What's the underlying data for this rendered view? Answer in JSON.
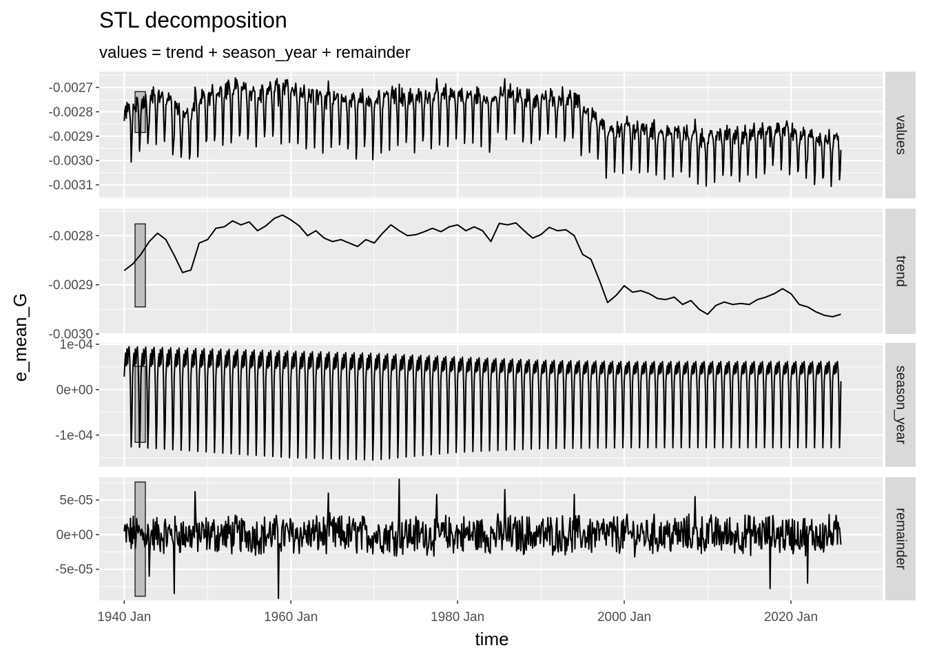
{
  "chart_data": {
    "type": "line",
    "title": "STL decomposition",
    "subtitle": "values = trend + season_year + remainder",
    "xlabel": "time",
    "ylabel": "e_mean_G",
    "x_range": [
      1937.0,
      2031.0
    ],
    "x_ticks": [
      {
        "value": 1940,
        "label": "1940 Jan"
      },
      {
        "value": 1960,
        "label": "1960 Jan"
      },
      {
        "value": 1980,
        "label": "1980 Jan"
      },
      {
        "value": 2000,
        "label": "2000 Jan"
      },
      {
        "value": 2020,
        "label": "2020 Jan"
      }
    ],
    "series_start": 1940.0,
    "series_end": 2026.0,
    "panels": [
      {
        "name": "values",
        "ylim": [
          -0.003155,
          -0.002635
        ],
        "ticks": [
          {
            "value": -0.0027,
            "label": "-0.0027"
          },
          {
            "value": -0.0028,
            "label": "-0.0028"
          },
          {
            "value": -0.0029,
            "label": "-0.0029"
          },
          {
            "value": -0.003,
            "label": "-0.0030"
          },
          {
            "value": -0.0031,
            "label": "-0.0031"
          }
        ],
        "scale_bar": [
          -0.002885,
          -0.002717
        ]
      },
      {
        "name": "trend",
        "ylim": [
          -0.003,
          -0.002745
        ],
        "ticks": [
          {
            "value": -0.0028,
            "label": "-0.0028"
          },
          {
            "value": -0.0029,
            "label": "-0.0029"
          },
          {
            "value": -0.003,
            "label": "-0.0030"
          }
        ],
        "scale_bar": [
          -0.002945,
          -0.002776
        ]
      },
      {
        "name": "season_year",
        "ylim": [
          -0.00017,
          0.000103
        ],
        "ticks": [
          {
            "value": 0.0001,
            "label": "1e-04"
          },
          {
            "value": 0.0,
            "label": "0e+00"
          },
          {
            "value": -0.0001,
            "label": "-1e-04"
          }
        ],
        "scale_bar": [
          -0.000116,
          5.16e-05
        ]
      },
      {
        "name": "remainder",
        "ylim": [
          -9.5e-05,
          8.3e-05
        ],
        "ticks": [
          {
            "value": 5e-05,
            "label": "5e-05"
          },
          {
            "value": 0.0,
            "label": "0e+00"
          },
          {
            "value": -5e-05,
            "label": "-5e-05"
          }
        ],
        "scale_bar": [
          -8.9e-05,
          7.6e-05
        ]
      }
    ],
    "trend_points": [
      [
        1940.0,
        -0.002871
      ],
      [
        1941.0,
        -0.002858
      ],
      [
        1942.0,
        -0.002838
      ],
      [
        1943.0,
        -0.002812
      ],
      [
        1944.0,
        -0.002795
      ],
      [
        1945.0,
        -0.002808
      ],
      [
        1946.0,
        -0.00284
      ],
      [
        1947.0,
        -0.002875
      ],
      [
        1948.0,
        -0.00287
      ],
      [
        1949.0,
        -0.002815
      ],
      [
        1950.0,
        -0.002808
      ],
      [
        1951.0,
        -0.002785
      ],
      [
        1952.0,
        -0.002782
      ],
      [
        1953.0,
        -0.00277
      ],
      [
        1954.0,
        -0.002778
      ],
      [
        1955.0,
        -0.002772
      ],
      [
        1956.0,
        -0.00279
      ],
      [
        1957.0,
        -0.00278
      ],
      [
        1958.0,
        -0.002765
      ],
      [
        1959.0,
        -0.002758
      ],
      [
        1960.0,
        -0.002768
      ],
      [
        1961.0,
        -0.00278
      ],
      [
        1962.0,
        -0.0028
      ],
      [
        1963.0,
        -0.00279
      ],
      [
        1964.0,
        -0.002805
      ],
      [
        1965.0,
        -0.002812
      ],
      [
        1966.0,
        -0.002808
      ],
      [
        1967.0,
        -0.002815
      ],
      [
        1968.0,
        -0.002822
      ],
      [
        1969.0,
        -0.002808
      ],
      [
        1970.0,
        -0.002815
      ],
      [
        1971.0,
        -0.002795
      ],
      [
        1972.0,
        -0.002778
      ],
      [
        1973.0,
        -0.00279
      ],
      [
        1974.0,
        -0.0028
      ],
      [
        1975.0,
        -0.002798
      ],
      [
        1976.0,
        -0.002792
      ],
      [
        1977.0,
        -0.002785
      ],
      [
        1978.0,
        -0.002792
      ],
      [
        1979.0,
        -0.002782
      ],
      [
        1980.0,
        -0.002778
      ],
      [
        1981.0,
        -0.00279
      ],
      [
        1982.0,
        -0.002782
      ],
      [
        1983.0,
        -0.00279
      ],
      [
        1984.0,
        -0.002812
      ],
      [
        1985.0,
        -0.002775
      ],
      [
        1986.0,
        -0.002778
      ],
      [
        1987.0,
        -0.002774
      ],
      [
        1988.0,
        -0.00279
      ],
      [
        1989.0,
        -0.002805
      ],
      [
        1990.0,
        -0.002798
      ],
      [
        1991.0,
        -0.002783
      ],
      [
        1992.0,
        -0.00279
      ],
      [
        1993.0,
        -0.002788
      ],
      [
        1994.0,
        -0.0028
      ],
      [
        1995.0,
        -0.002838
      ],
      [
        1996.0,
        -0.002848
      ],
      [
        1997.0,
        -0.00289
      ],
      [
        1998.0,
        -0.002936
      ],
      [
        1999.0,
        -0.002922
      ],
      [
        2000.0,
        -0.002902
      ],
      [
        2001.0,
        -0.002915
      ],
      [
        2002.0,
        -0.002912
      ],
      [
        2003.0,
        -0.002918
      ],
      [
        2004.0,
        -0.002928
      ],
      [
        2005.0,
        -0.00293
      ],
      [
        2006.0,
        -0.002925
      ],
      [
        2007.0,
        -0.00294
      ],
      [
        2008.0,
        -0.002932
      ],
      [
        2009.0,
        -0.00295
      ],
      [
        2010.0,
        -0.00296
      ],
      [
        2011.0,
        -0.002942
      ],
      [
        2012.0,
        -0.002935
      ],
      [
        2013.0,
        -0.00294
      ],
      [
        2014.0,
        -0.002938
      ],
      [
        2015.0,
        -0.00294
      ],
      [
        2016.0,
        -0.00293
      ],
      [
        2017.0,
        -0.002925
      ],
      [
        2018.0,
        -0.002918
      ],
      [
        2019.0,
        -0.002908
      ],
      [
        2020.0,
        -0.002918
      ],
      [
        2021.0,
        -0.00294
      ],
      [
        2022.0,
        -0.002945
      ],
      [
        2023.0,
        -0.002955
      ],
      [
        2024.0,
        -0.002962
      ],
      [
        2025.0,
        -0.002965
      ],
      [
        2026.0,
        -0.00296
      ]
    ],
    "season_levels": [
      [
        1940,
        9.5e-05,
        -0.000125
      ],
      [
        1960,
        8.5e-05,
        -0.00015
      ],
      [
        1970,
        8e-05,
        -0.000155
      ],
      [
        1980,
        7.2e-05,
        -0.000138
      ],
      [
        1990,
        6.5e-05,
        -0.00013
      ],
      [
        2000,
        6.2e-05,
        -0.000128
      ],
      [
        2026,
        6.2e-05,
        -0.000128
      ]
    ],
    "remainder_amplitude": 2.5e-05,
    "remainder_spikes": [
      [
        1946.0,
        -8.5e-05
      ],
      [
        1948.5,
        6.2e-05
      ],
      [
        1958.5,
        -9.2e-05
      ],
      [
        1964.5,
        6e-05
      ],
      [
        1973.0,
        8e-05
      ],
      [
        1985.7,
        6.5e-05
      ],
      [
        1994.0,
        5.8e-05
      ],
      [
        2017.5,
        -7.8e-05
      ],
      [
        2022.0,
        -7e-05
      ],
      [
        1943.0,
        -6e-05
      ],
      [
        2008.5,
        5.5e-05
      ],
      [
        1977.5,
        5.8e-05
      ]
    ]
  }
}
